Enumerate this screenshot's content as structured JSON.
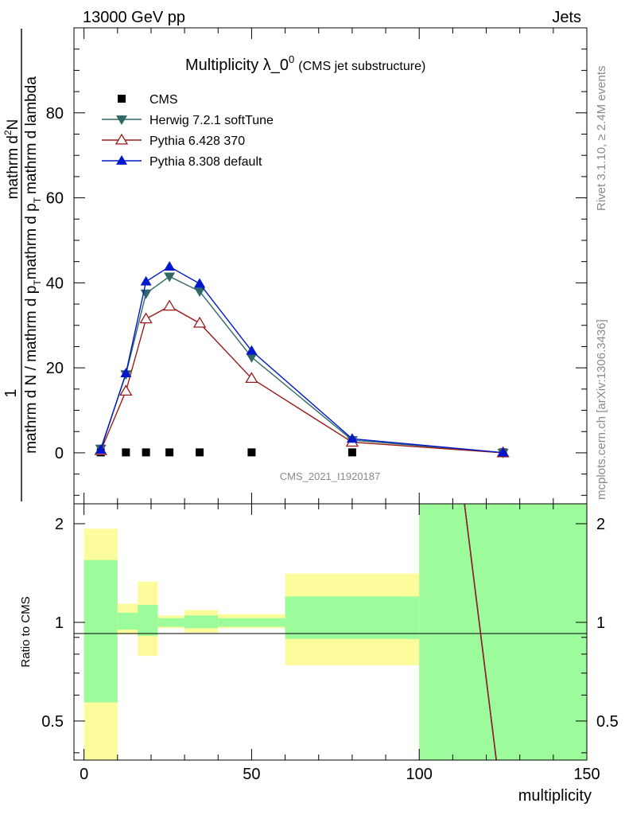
{
  "header": {
    "left": "13000 GeV pp",
    "right": "Jets"
  },
  "plot": {
    "title_main": "Multiplicity λ_0",
    "title_sup": "0",
    "title_paren": "(CMS jet substructure)",
    "watermark": "CMS_2021_I1920187",
    "side_text_1": "Rivet 3.1.10, ≥ 2.4M events",
    "side_text_2": "mcplots.cern.ch [arXiv:1306.3436]"
  },
  "y_label_main": {
    "numer_one": "1",
    "numer_dN": "mathrm d",
    "numer_N_sup": "2",
    "numer_N": "N",
    "denom_a": "mathrm d N / mathrm d p",
    "denom_a_sub": "T",
    "denom_b": "mathrm d p",
    "denom_b_sub": "T",
    "denom_c": "mathrm d lambda"
  },
  "ratio_ylabel": "Ratio to CMS",
  "chart_data": [
    {
      "type": "line",
      "title": "Multiplicity λ_0^0 (CMS jet substructure)",
      "xlabel": "multiplicity",
      "ylabel": "1/(dN/dpT) d²N/(dpT dλ)",
      "xlim": [
        -3,
        150
      ],
      "ylim": [
        -12,
        100
      ],
      "yticks": [
        0,
        20,
        40,
        60,
        80
      ],
      "x": [
        5,
        12.5,
        18.5,
        25.5,
        34.5,
        50,
        80,
        125
      ],
      "series": [
        {
          "name": "CMS",
          "color": "#000000",
          "marker": "square",
          "values": [
            0.1,
            0.1,
            0.1,
            0.1,
            0.1,
            0.1,
            0.1,
            0.1
          ]
        },
        {
          "name": "Herwig 7.2.1 softTune",
          "color": "#2f6866",
          "marker": "triangle-down",
          "values": [
            1.0,
            18.5,
            37.5,
            41.5,
            38.0,
            22.5,
            3.0,
            0.0
          ]
        },
        {
          "name": "Pythia 6.428 370",
          "color": "#9b1a1a",
          "marker": "triangle-open",
          "values": [
            0.5,
            14.5,
            31.5,
            34.5,
            30.5,
            17.5,
            2.5,
            0.0
          ]
        },
        {
          "name": "Pythia 8.308 default",
          "color": "#0018cc",
          "marker": "triangle-up",
          "values": [
            0.7,
            18.7,
            40.3,
            43.8,
            39.8,
            24.0,
            3.3,
            0.05
          ]
        }
      ]
    },
    {
      "type": "area",
      "title": "Ratio to CMS",
      "xlabel": "multiplicity",
      "ylabel": "Ratio to CMS",
      "xlim": [
        -3,
        150
      ],
      "ylim": [
        0.38,
        2.3
      ],
      "yticks": [
        0.5,
        1,
        2
      ],
      "xticks": [
        0,
        50,
        100,
        150
      ],
      "bins": [
        {
          "x": [
            0,
            10
          ],
          "stat": [
            0.57,
            1.55
          ],
          "total": [
            0.38,
            1.93
          ]
        },
        {
          "x": [
            10,
            16
          ],
          "stat": [
            0.95,
            1.07
          ],
          "total": [
            0.92,
            1.14
          ]
        },
        {
          "x": [
            16,
            22
          ],
          "stat": [
            0.91,
            1.13
          ],
          "total": [
            0.79,
            1.33
          ]
        },
        {
          "x": [
            22,
            30
          ],
          "stat": [
            0.97,
            1.03
          ],
          "total": [
            0.96,
            1.05
          ]
        },
        {
          "x": [
            30,
            40
          ],
          "stat": [
            0.96,
            1.05
          ],
          "total": [
            0.93,
            1.09
          ]
        },
        {
          "x": [
            40,
            60
          ],
          "stat": [
            0.97,
            1.03
          ],
          "total": [
            0.96,
            1.06
          ]
        },
        {
          "x": [
            60,
            100
          ],
          "stat": [
            0.89,
            1.2
          ],
          "total": [
            0.74,
            1.41
          ]
        },
        {
          "x": [
            100,
            150
          ],
          "stat": [
            0.38,
            2.3
          ],
          "total": [
            0.38,
            2.3
          ]
        }
      ],
      "series": [
        {
          "name": "Pythia 8.308 default",
          "color": "#0018cc",
          "x": [
            113.5,
            123
          ],
          "values": [
            2.3,
            0.38
          ]
        },
        {
          "name": "Pythia 6.428 370",
          "color": "#9b1a1a",
          "x": [
            113.5,
            123
          ],
          "values": [
            2.3,
            0.38
          ]
        }
      ],
      "colors": {
        "stat": "#9cfc9c",
        "total": "#fcfc9c"
      }
    }
  ]
}
